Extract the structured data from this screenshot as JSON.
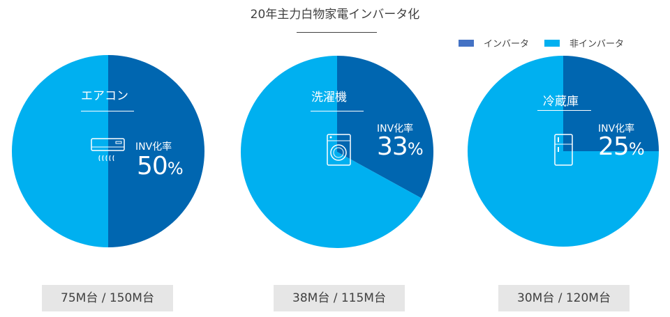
{
  "chart_data": {
    "type": "pie",
    "title": "20年主力白物家電インバータ化",
    "legend": [
      {
        "name": "インバータ",
        "color": "#4472C4"
      },
      {
        "name": "非インバータ",
        "color": "#00B0F0"
      }
    ],
    "legend_position": "top-right",
    "slice_colors": {
      "inverter": "#0066B0",
      "non_inverter": "#00B0F0"
    },
    "pies": [
      {
        "name": "エアコン",
        "inv_label": "INV化率",
        "inverter_pct": 50,
        "non_inverter_pct": 50,
        "pct_text": "50",
        "units": "75M台 / 150M台",
        "icon": "air-conditioner-icon"
      },
      {
        "name": "洗濯機",
        "inv_label": "INV化率",
        "inverter_pct": 33,
        "non_inverter_pct": 67,
        "pct_text": "33",
        "units": "38M台 / 115M台",
        "icon": "washing-machine-icon"
      },
      {
        "name": "冷蔵庫",
        "inv_label": "INV化率",
        "inverter_pct": 25,
        "non_inverter_pct": 75,
        "pct_text": "25",
        "units": "30M台 / 120M台",
        "icon": "refrigerator-icon"
      }
    ],
    "percent_sign": "%"
  }
}
